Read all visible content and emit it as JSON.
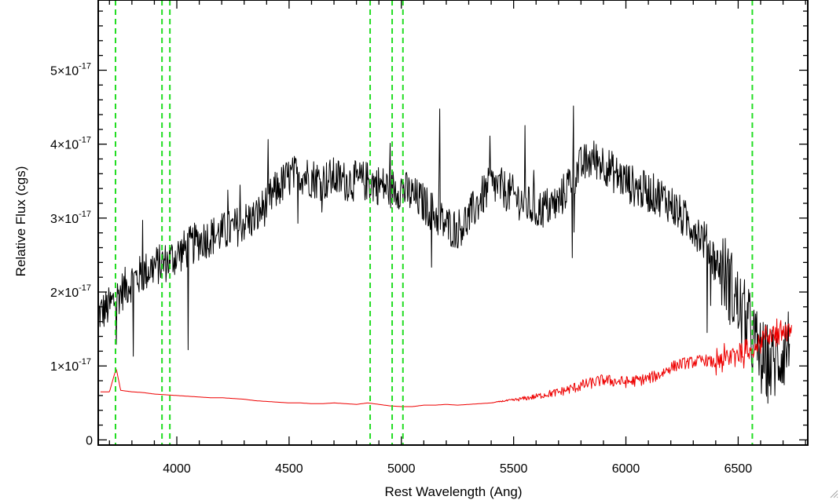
{
  "chart_data": {
    "type": "line",
    "title": "",
    "xlabel": "Rest Wavelength (Ang)",
    "ylabel": "Relative Flux (cgs)",
    "xlim": [
      3650,
      6810
    ],
    "ylim": [
      -7e-19,
      5.95e-17
    ],
    "x_ticks": [
      {
        "value": 4000,
        "label": "4000"
      },
      {
        "value": 4500,
        "label": "4500"
      },
      {
        "value": 5000,
        "label": "5000"
      },
      {
        "value": 5500,
        "label": "5500"
      },
      {
        "value": 6000,
        "label": "6000"
      },
      {
        "value": 6500,
        "label": "6500"
      }
    ],
    "y_ticks": [
      {
        "value": 0,
        "mantissa": "0",
        "exp": ""
      },
      {
        "value": 1e-17,
        "mantissa": "1×10",
        "exp": "-17"
      },
      {
        "value": 2e-17,
        "mantissa": "2×10",
        "exp": "-17"
      },
      {
        "value": 3e-17,
        "mantissa": "3×10",
        "exp": "-17"
      },
      {
        "value": 4e-17,
        "mantissa": "4×10",
        "exp": "-17"
      },
      {
        "value": 5e-17,
        "mantissa": "5×10",
        "exp": "-17"
      }
    ],
    "grid": false,
    "legend": "none",
    "reference_lines": {
      "color": "#22dd22",
      "style": "dashed",
      "x": [
        3727,
        3934,
        3969,
        4861,
        4959,
        5007,
        6563
      ]
    },
    "series": [
      {
        "color": "#000000",
        "style": "noisy",
        "x": [
          3650,
          3700,
          3750,
          3800,
          3850,
          3900,
          3950,
          4000,
          4050,
          4100,
          4150,
          4200,
          4250,
          4300,
          4350,
          4400,
          4450,
          4500,
          4550,
          4600,
          4650,
          4700,
          4750,
          4800,
          4850,
          4900,
          4950,
          5000,
          5050,
          5100,
          5150,
          5200,
          5250,
          5300,
          5350,
          5400,
          5450,
          5500,
          5550,
          5600,
          5650,
          5700,
          5750,
          5800,
          5850,
          5900,
          5950,
          6000,
          6050,
          6100,
          6150,
          6200,
          6250,
          6300,
          6350,
          6400,
          6450,
          6500,
          6550,
          6600,
          6650,
          6700,
          6730
        ],
        "y": [
          1.7e-17,
          1.8e-17,
          2e-17,
          2.15e-17,
          2.25e-17,
          2.35e-17,
          2.4e-17,
          2.5e-17,
          2.6e-17,
          2.7e-17,
          2.75e-17,
          2.8e-17,
          2.85e-17,
          2.95e-17,
          3e-17,
          3.2e-17,
          3.4e-17,
          3.55e-17,
          3.6e-17,
          3.55e-17,
          3.5e-17,
          3.55e-17,
          3.5e-17,
          3.5e-17,
          3.5e-17,
          3.45e-17,
          3.4e-17,
          3.4e-17,
          3.3e-17,
          3.2e-17,
          3.05e-17,
          2.9e-17,
          2.85e-17,
          3e-17,
          3.25e-17,
          3.45e-17,
          3.4e-17,
          3.3e-17,
          3.2e-17,
          3.1e-17,
          3.15e-17,
          3.2e-17,
          3.5e-17,
          3.7e-17,
          3.8e-17,
          3.75e-17,
          3.6e-17,
          3.5e-17,
          3.4e-17,
          3.35e-17,
          3.3e-17,
          3.2e-17,
          3e-17,
          2.9e-17,
          2.7e-17,
          2.4e-17,
          2.2e-17,
          1.8e-17,
          1.5e-17,
          1.1e-17,
          1e-17,
          1.2e-17,
          1.3e-17
        ]
      },
      {
        "color": "#ee0000",
        "style": "smooth",
        "x": [
          3660,
          3700,
          3730,
          3750,
          3800,
          3850,
          3900,
          3950,
          4000,
          4050,
          4100,
          4150,
          4200,
          4250,
          4300,
          4350,
          4400,
          4450,
          4500,
          4550,
          4600,
          4650,
          4700,
          4750,
          4800,
          4850,
          4900,
          4950,
          5000,
          5050,
          5100,
          5150,
          5200,
          5250,
          5300,
          5350,
          5400,
          5450,
          5500,
          5550,
          5600,
          5650,
          5700,
          5750,
          5800,
          5850,
          5900,
          5950,
          6000,
          6050,
          6100,
          6150,
          6200,
          6250,
          6300,
          6350,
          6400,
          6450,
          6500,
          6550,
          6600,
          6650,
          6700,
          6740
        ],
        "y": [
          6.5e-18,
          6.5e-18,
          9.7e-18,
          6.7e-18,
          6.5e-18,
          6.4e-18,
          6.2e-18,
          6.1e-18,
          6e-18,
          5.9e-18,
          5.8e-18,
          5.7e-18,
          5.7e-18,
          5.6e-18,
          5.5e-18,
          5.3e-18,
          5.2e-18,
          5.1e-18,
          5e-18,
          5e-18,
          4.9e-18,
          4.9e-18,
          5e-18,
          4.9e-18,
          4.8e-18,
          5e-18,
          4.8e-18,
          4.6e-18,
          4.5e-18,
          4.5e-18,
          4.7e-18,
          4.7e-18,
          4.8e-18,
          4.7e-18,
          4.8e-18,
          4.9e-18,
          5e-18,
          5.2e-18,
          5.3e-18,
          5.5e-18,
          5.7e-18,
          6e-18,
          6.2e-18,
          6.6e-18,
          7e-18,
          7.4e-18,
          7.8e-18,
          7.6e-18,
          7.5e-18,
          7.7e-18,
          8e-18,
          8.5e-18,
          9.5e-18,
          1e-17,
          1.02e-17,
          1.05e-17,
          1e-17,
          1.05e-17,
          1.15e-17,
          1.2e-17,
          1.3e-17,
          1.4e-17,
          1.45e-17,
          1.45e-17
        ]
      }
    ]
  }
}
